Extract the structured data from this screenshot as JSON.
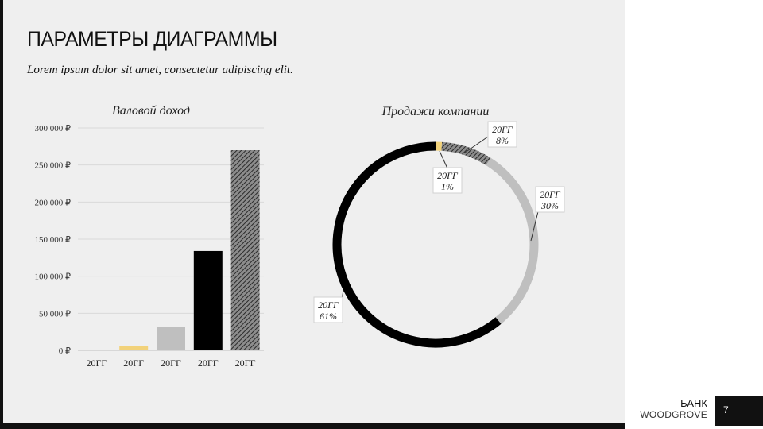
{
  "slide": {
    "title": "ПАРАМЕТРЫ ДИАГРАММЫ",
    "subtitle": "Lorem ipsum dolor sit amet, consectetur adipiscing elit.",
    "brand_line1": "БАНК",
    "brand_line2": "WOODGROVE",
    "page_number": "7"
  },
  "colors": {
    "black": "#000000",
    "light_gray": "#bfbfbf",
    "hatched_dark": "#595959",
    "yellow": "#f2d27a"
  },
  "chart_data": [
    {
      "type": "bar",
      "title": "Валовой доход",
      "categories": [
        "20ГГ",
        "20ГГ",
        "20ГГ",
        "20ГГ",
        "20ГГ"
      ],
      "values": [
        0,
        6000,
        32000,
        134000,
        270000
      ],
      "colors": [
        "#f2d27a",
        "#f2d27a",
        "#bfbfbf",
        "#000000",
        "hatched"
      ],
      "ylim": [
        0,
        300000
      ],
      "yticks": [
        "0 ₽",
        "50 000 ₽",
        "100 000 ₽",
        "150 000 ₽",
        "200 000 ₽",
        "250 000 ₽",
        "300 000 ₽"
      ],
      "grid": true,
      "xlabel": "",
      "ylabel": ""
    },
    {
      "type": "pie",
      "style": "donut",
      "title": "Продажи компании",
      "slices": [
        {
          "label": "20ГГ",
          "pct_label": "1%",
          "value": 1,
          "color": "#f2d27a"
        },
        {
          "label": "20ГГ",
          "pct_label": "8%",
          "value": 8,
          "color": "hatched"
        },
        {
          "label": "20ГГ",
          "pct_label": "30%",
          "value": 30,
          "color": "#bfbfbf"
        },
        {
          "label": "20ГГ",
          "pct_label": "61%",
          "value": 61,
          "color": "#000000"
        }
      ]
    }
  ]
}
